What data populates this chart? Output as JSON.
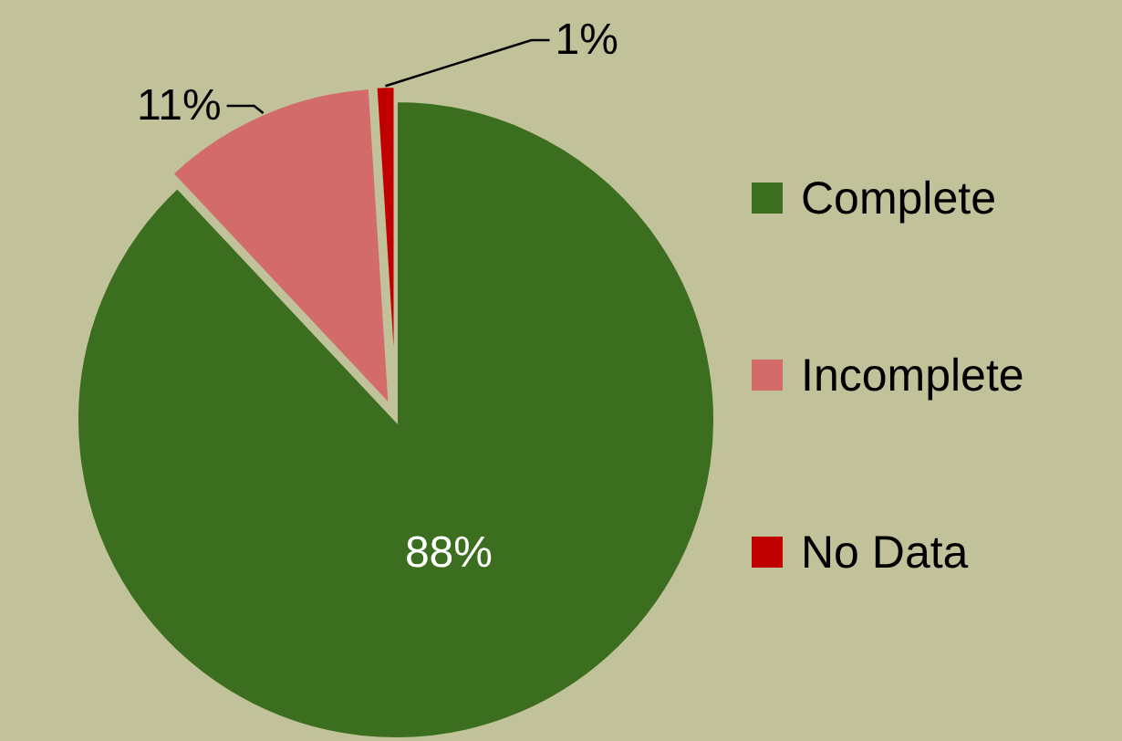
{
  "chart_data": {
    "type": "pie",
    "categories": [
      "Complete",
      "Incomplete",
      "No Data"
    ],
    "values": [
      88,
      11,
      1
    ],
    "colors": [
      "#3b6e1f",
      "#d46b6b",
      "#c00000"
    ],
    "value_labels": [
      "88%",
      "11%",
      "1%"
    ],
    "legend": "right"
  }
}
